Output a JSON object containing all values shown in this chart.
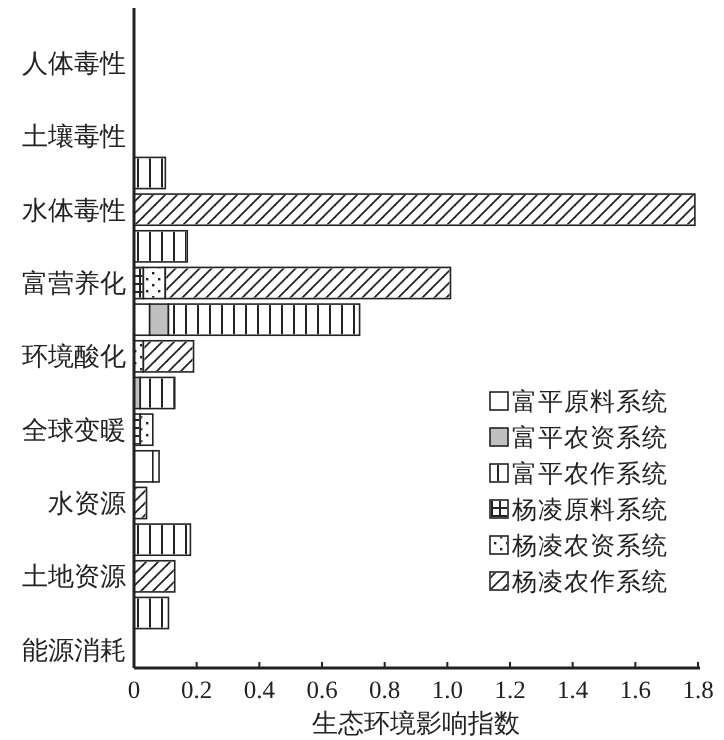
{
  "chart_data": {
    "type": "bar",
    "orientation": "horizontal",
    "stacked": true,
    "xlabel": "生态环境影响指数",
    "categories": [
      null,
      "人体毒性",
      null,
      "土壤毒性",
      null,
      "水体毒性",
      null,
      "富营养化",
      null,
      "环境酸化",
      null,
      "全球变暖",
      null,
      "水资源",
      null,
      "土地资源",
      null,
      "能源消耗"
    ],
    "series": [
      {
        "name": "富平原料系统",
        "color": "#ffffff",
        "values": [
          0,
          null,
          0,
          null,
          0,
          null,
          0,
          null,
          0.05,
          null,
          null,
          null,
          0.06,
          null,
          0,
          null,
          0,
          null
        ]
      },
      {
        "name": "富平农资系统",
        "color": "#c0c0c0",
        "values": [
          0,
          null,
          0,
          null,
          0,
          null,
          0,
          null,
          0.06,
          null,
          0.02,
          null,
          0,
          null,
          0,
          null,
          0,
          null
        ]
      },
      {
        "name": "富平农作系统",
        "color": "#ffffff",
        "values": [
          0,
          null,
          0,
          null,
          0.1,
          null,
          0.17,
          null,
          0.61,
          null,
          0.11,
          null,
          0.02,
          null,
          0.18,
          null,
          0.11,
          null
        ]
      },
      {
        "name": "杨凌原料系统",
        "color": "#ffffff",
        "values": [
          null,
          0,
          null,
          0,
          null,
          0,
          null,
          0.03,
          null,
          0,
          null,
          0.02,
          null,
          0,
          null,
          0,
          null,
          0
        ]
      },
      {
        "name": "杨凌农资系统",
        "color": "#ffffff",
        "values": [
          null,
          0,
          null,
          0,
          null,
          0,
          null,
          0.07,
          null,
          0.03,
          null,
          0.04,
          null,
          0,
          null,
          0,
          null,
          0
        ]
      },
      {
        "name": "杨凌农作系统",
        "color": "#ffffff",
        "values": [
          null,
          0,
          null,
          0,
          null,
          1.79,
          null,
          0.91,
          null,
          0.16,
          null,
          0,
          null,
          0.04,
          null,
          0.13,
          null,
          0
        ]
      }
    ],
    "xlim": [
      0,
      1.8
    ],
    "xticks": [
      0,
      0.2,
      0.4,
      0.6,
      0.8,
      {
        "value": 1,
        "label": "1.0"
      },
      1.2,
      1.4,
      1.6,
      1.8
    ],
    "legend": "bottom right"
  }
}
